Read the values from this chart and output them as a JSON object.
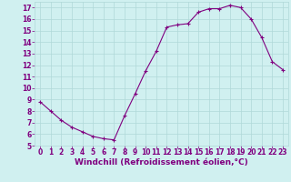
{
  "x": [
    0,
    1,
    2,
    3,
    4,
    5,
    6,
    7,
    8,
    9,
    10,
    11,
    12,
    13,
    14,
    15,
    16,
    17,
    18,
    19,
    20,
    21,
    22,
    23
  ],
  "y": [
    8.8,
    8.0,
    7.2,
    6.6,
    6.2,
    5.8,
    5.6,
    5.5,
    7.6,
    9.5,
    11.5,
    13.2,
    15.3,
    15.5,
    15.6,
    16.6,
    16.9,
    16.9,
    17.2,
    17.0,
    16.0,
    14.4,
    12.3,
    11.6
  ],
  "xlim": [
    -0.5,
    23.5
  ],
  "ylim": [
    5,
    17.5
  ],
  "yticks": [
    5,
    6,
    7,
    8,
    9,
    10,
    11,
    12,
    13,
    14,
    15,
    16,
    17
  ],
  "xticks": [
    0,
    1,
    2,
    3,
    4,
    5,
    6,
    7,
    8,
    9,
    10,
    11,
    12,
    13,
    14,
    15,
    16,
    17,
    18,
    19,
    20,
    21,
    22,
    23
  ],
  "xlabel": "Windchill (Refroidissement éolien,°C)",
  "line_color": "#800080",
  "marker": "+",
  "bg_color": "#d0f0f0",
  "grid_color": "#b0d8d8",
  "tick_color": "#800080",
  "label_color": "#800080",
  "tick_fontsize": 5.5,
  "xlabel_fontsize": 6.5
}
